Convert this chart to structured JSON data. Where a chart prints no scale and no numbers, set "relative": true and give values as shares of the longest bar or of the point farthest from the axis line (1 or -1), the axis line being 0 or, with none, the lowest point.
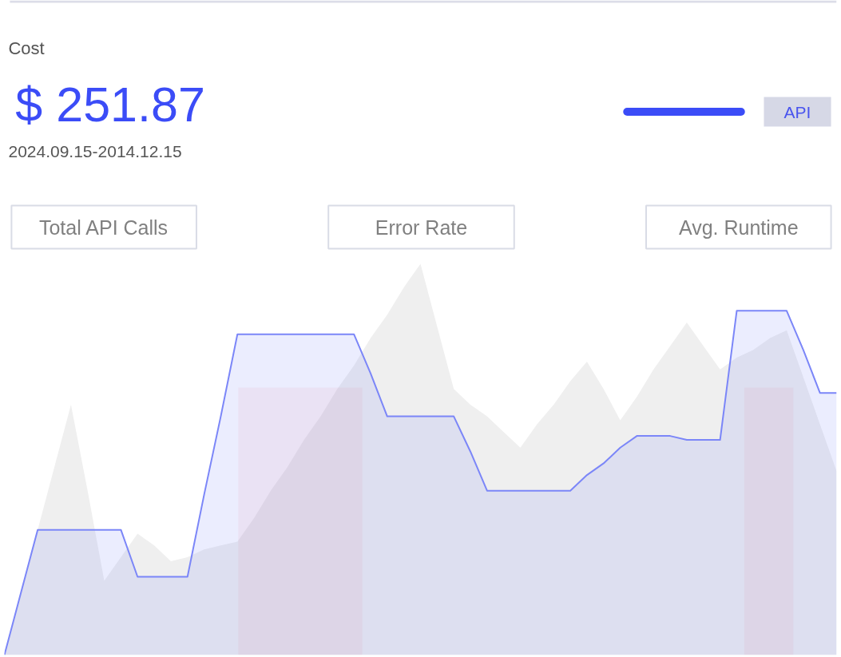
{
  "chart_data": {
    "type": "area",
    "title": "Cost",
    "subtitle": "$ 251.87",
    "annotations": [
      "2024.09.15-2014.12.15",
      "Total API Calls",
      "Error Rate",
      "Avg. Runtime",
      "API"
    ],
    "relative": true,
    "tick_labels": false,
    "categories": [
      null,
      null,
      null,
      null,
      null,
      null,
      null,
      null,
      null,
      null,
      null,
      null,
      null,
      null,
      null,
      null,
      null,
      null,
      null,
      null,
      null,
      null,
      null,
      null,
      null,
      null,
      null,
      null,
      null,
      null,
      null,
      null,
      null,
      null,
      null,
      null,
      null,
      null,
      null,
      null,
      null,
      null,
      null,
      null,
      null,
      null,
      null,
      null,
      null,
      null,
      null
    ],
    "series": [
      {
        "color": "#efefef",
        "values": [
          0,
          0.16,
          0.32,
          0.48,
          0.64,
          0.42,
          0.19,
          0.25,
          0.31,
          0.28,
          0.24,
          0.25,
          0.27,
          0.28,
          0.29,
          0.35,
          0.42,
          0.48,
          0.55,
          0.61,
          0.68,
          0.74,
          0.81,
          0.87,
          0.94,
          1,
          0.84,
          0.68,
          0.64,
          0.61,
          0.57,
          0.53,
          0.59,
          0.64,
          0.7,
          0.75,
          0.68,
          0.6,
          0.66,
          0.73,
          0.79,
          0.85,
          0.79,
          0.73,
          0.76,
          0.78,
          0.81,
          0.83,
          0.71,
          0.59,
          0.47
        ]
      },
      {
        "color": "#7b86f8",
        "line_style": "solid",
        "values": [
          0,
          0.16,
          0.32,
          0.32,
          0.32,
          0.32,
          0.32,
          0.32,
          0.2,
          0.2,
          0.2,
          0.2,
          0.41,
          0.61,
          0.82,
          0.82,
          0.82,
          0.82,
          0.82,
          0.82,
          0.82,
          0.82,
          0.72,
          0.61,
          0.61,
          0.61,
          0.61,
          0.61,
          0.52,
          0.42,
          0.42,
          0.42,
          0.42,
          0.42,
          0.42,
          0.46,
          0.49,
          0.53,
          0.56,
          0.56,
          0.56,
          0.55,
          0.55,
          0.55,
          0.88,
          0.88,
          0.88,
          0.88,
          0.78,
          0.67,
          0.67
        ]
      }
    ]
  }
}
